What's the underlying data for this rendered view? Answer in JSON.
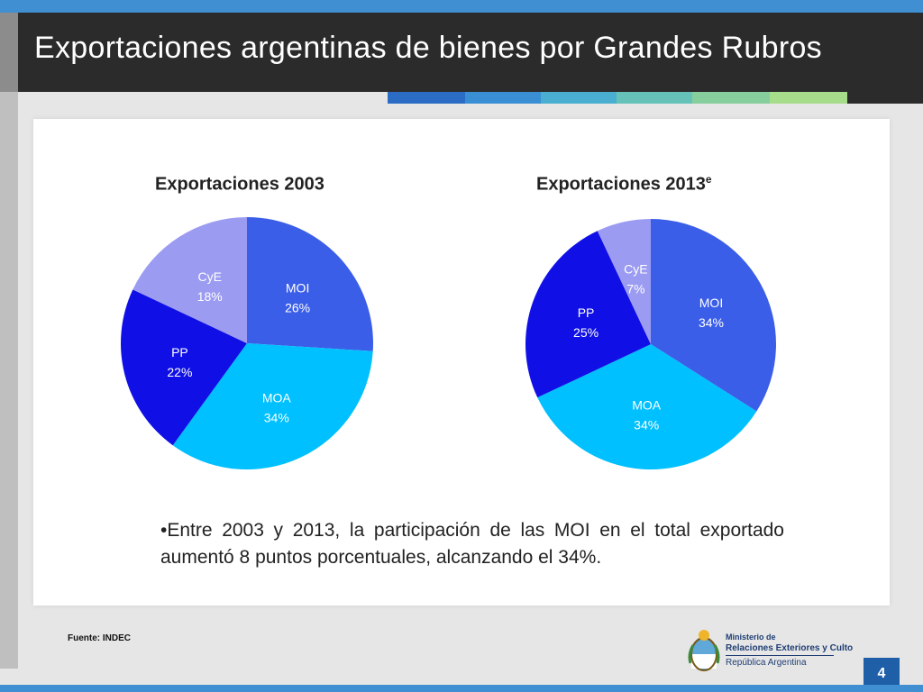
{
  "slide": {
    "title": "Exportaciones argentinas de bienes por Grandes Rubros",
    "note": "•Entre 2003 y 2013, la participación de las MOI en el total exportado aumentó 8 puntos porcentuales, alcanzando el 34%.",
    "source": "Fuente: INDEC",
    "page_number": "4"
  },
  "logo": {
    "line1": "Ministerio de",
    "line2": "Relaciones Exteriores y Culto",
    "line3": "República Argentina"
  },
  "colors": {
    "MOI": "#3b5ee8",
    "MOA": "#00c0ff",
    "PP": "#1010e6",
    "CyE": "#9b9bf2"
  },
  "chart_data": [
    {
      "type": "pie",
      "title": "Exportaciones 2003",
      "title_sup": "",
      "slices": [
        {
          "label": "MOI",
          "value": 26,
          "display": "26%"
        },
        {
          "label": "MOA",
          "value": 34,
          "display": "34%"
        },
        {
          "label": "PP",
          "value": 22,
          "display": "22%"
        },
        {
          "label": "CyE",
          "value": 18,
          "display": "18%"
        }
      ]
    },
    {
      "type": "pie",
      "title": "Exportaciones 2013",
      "title_sup": "e",
      "slices": [
        {
          "label": "MOI",
          "value": 34,
          "display": "34%"
        },
        {
          "label": "MOA",
          "value": 34,
          "display": "34%"
        },
        {
          "label": "PP",
          "value": 25,
          "display": "25%"
        },
        {
          "label": "CyE",
          "value": 7,
          "display": "7%"
        }
      ]
    }
  ]
}
